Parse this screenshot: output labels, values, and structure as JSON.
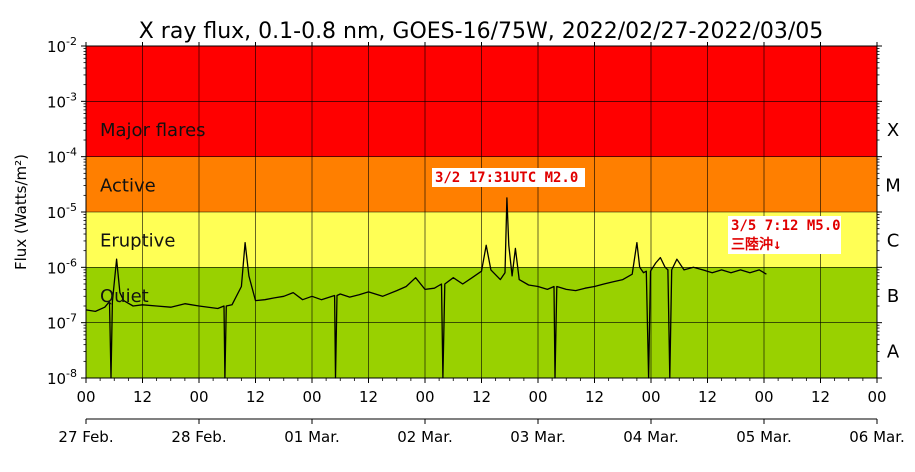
{
  "chart_data": {
    "type": "line",
    "title": "X ray flux, 0.1-0.8 nm, GOES-16/75W, 2022/02/27-2022/03/05",
    "ylabel": "Flux (Watts/m²)",
    "yscale": "log",
    "ylim": [
      1e-08,
      0.01
    ],
    "xlim": [
      0,
      168
    ],
    "x_unit": "hours since 2022-02-27 00:00 UTC",
    "y_ticks": [
      {
        "base": "10",
        "exp": "-8",
        "value": 1e-08
      },
      {
        "base": "10",
        "exp": "-7",
        "value": 1e-07
      },
      {
        "base": "10",
        "exp": "-6",
        "value": 1e-06
      },
      {
        "base": "10",
        "exp": "-5",
        "value": 1e-05
      },
      {
        "base": "10",
        "exp": "-4",
        "value": 0.0001
      },
      {
        "base": "10",
        "exp": "-3",
        "value": 0.001
      },
      {
        "base": "10",
        "exp": "-2",
        "value": 0.01
      }
    ],
    "x_hour_ticks": [
      {
        "x": 0,
        "label": "00"
      },
      {
        "x": 12,
        "label": "12"
      },
      {
        "x": 24,
        "label": "00"
      },
      {
        "x": 36,
        "label": "12"
      },
      {
        "x": 48,
        "label": "00"
      },
      {
        "x": 60,
        "label": "12"
      },
      {
        "x": 72,
        "label": "00"
      },
      {
        "x": 84,
        "label": "12"
      },
      {
        "x": 96,
        "label": "00"
      },
      {
        "x": 108,
        "label": "12"
      },
      {
        "x": 120,
        "label": "00"
      },
      {
        "x": 132,
        "label": "12"
      },
      {
        "x": 144,
        "label": "00"
      },
      {
        "x": 156,
        "label": "12"
      },
      {
        "x": 168,
        "label": "00"
      }
    ],
    "x_date_ticks": [
      {
        "x": 0,
        "label": "27 Feb."
      },
      {
        "x": 24,
        "label": "28 Feb."
      },
      {
        "x": 48,
        "label": "01 Mar."
      },
      {
        "x": 72,
        "label": "02 Mar."
      },
      {
        "x": 96,
        "label": "03 Mar."
      },
      {
        "x": 120,
        "label": "04 Mar."
      },
      {
        "x": 144,
        "label": "05 Mar."
      },
      {
        "x": 168,
        "label": "06 Mar."
      }
    ],
    "bands": [
      {
        "label": "Major flares",
        "from": 0.0001,
        "to": 0.01,
        "color": "#ff0000"
      },
      {
        "label": "Active",
        "from": 1e-05,
        "to": 0.0001,
        "color": "#ff7f00"
      },
      {
        "label": "Eruptive",
        "from": 1e-06,
        "to": 1e-05,
        "color": "#ffff55"
      },
      {
        "label": "Quiet",
        "from": 1e-08,
        "to": 1e-06,
        "color": "#99d100"
      }
    ],
    "classes": [
      {
        "label": "X",
        "at": 0.000316
      },
      {
        "label": "M",
        "at": 3.16e-05
      },
      {
        "label": "C",
        "at": 3.16e-06
      },
      {
        "label": "B",
        "at": 3.16e-07
      },
      {
        "label": "A",
        "at": 3.16e-08
      }
    ],
    "annotations": [
      {
        "text": "3/2 17:31UTC M2.0"
      },
      {
        "text": "3/5 7:12 M5.0"
      },
      {
        "text": "三陸沖↓"
      }
    ],
    "series": [
      {
        "color": "#000000",
        "points": [
          [
            0,
            1.7e-07
          ],
          [
            2,
            1.6e-07
          ],
          [
            4,
            1.9e-07
          ],
          [
            5,
            2.4e-07
          ],
          [
            5.3,
            1e-08
          ],
          [
            5.6,
            2.4e-07
          ],
          [
            6.5,
            1.4e-06
          ],
          [
            7.2,
            3.5e-07
          ],
          [
            8,
            2.5e-07
          ],
          [
            10,
            2e-07
          ],
          [
            12,
            2.1e-07
          ],
          [
            15,
            2e-07
          ],
          [
            18,
            1.9e-07
          ],
          [
            21,
            2.2e-07
          ],
          [
            24,
            2e-07
          ],
          [
            28,
            1.8e-07
          ],
          [
            29.3,
            2e-07
          ],
          [
            29.5,
            1e-08
          ],
          [
            29.8,
            2e-07
          ],
          [
            31,
            2.1e-07
          ],
          [
            33,
            4.5e-07
          ],
          [
            33.8,
            2.8e-06
          ],
          [
            34.6,
            7e-07
          ],
          [
            36,
            2.5e-07
          ],
          [
            38,
            2.6e-07
          ],
          [
            40,
            2.8e-07
          ],
          [
            42,
            3e-07
          ],
          [
            44,
            3.5e-07
          ],
          [
            46,
            2.6e-07
          ],
          [
            48,
            3e-07
          ],
          [
            50,
            2.6e-07
          ],
          [
            52.8,
            3.1e-07
          ],
          [
            53,
            1e-08
          ],
          [
            53.3,
            3.1e-07
          ],
          [
            54,
            3.3e-07
          ],
          [
            56,
            2.9e-07
          ],
          [
            58,
            3.2e-07
          ],
          [
            60,
            3.6e-07
          ],
          [
            63,
            3e-07
          ],
          [
            66,
            3.8e-07
          ],
          [
            68,
            4.5e-07
          ],
          [
            70,
            6.5e-07
          ],
          [
            72,
            4e-07
          ],
          [
            74,
            4.2e-07
          ],
          [
            75.5,
            5e-07
          ],
          [
            75.8,
            1e-08
          ],
          [
            76.2,
            5e-07
          ],
          [
            78,
            6.5e-07
          ],
          [
            80,
            5e-07
          ],
          [
            82,
            6.5e-07
          ],
          [
            84,
            8.5e-07
          ],
          [
            85,
            2.5e-06
          ],
          [
            86,
            9e-07
          ],
          [
            88,
            6e-07
          ],
          [
            89,
            8e-07
          ],
          [
            89.4,
            1.8e-05
          ],
          [
            89.8,
            2.5e-06
          ],
          [
            90.5,
            7e-07
          ],
          [
            91.2,
            2.2e-06
          ],
          [
            92,
            6e-07
          ],
          [
            94,
            4.8e-07
          ],
          [
            96,
            4.5e-07
          ],
          [
            98,
            4e-07
          ],
          [
            99.4,
            4.5e-07
          ],
          [
            99.6,
            1e-08
          ],
          [
            100,
            4.5e-07
          ],
          [
            102,
            4e-07
          ],
          [
            104,
            3.8e-07
          ],
          [
            106,
            4.2e-07
          ],
          [
            108,
            4.5e-07
          ],
          [
            110,
            5e-07
          ],
          [
            112,
            5.5e-07
          ],
          [
            114,
            6e-07
          ],
          [
            116,
            7.5e-07
          ],
          [
            117,
            2.8e-06
          ],
          [
            117.6,
            1e-06
          ],
          [
            118.4,
            8e-07
          ],
          [
            119,
            8.5e-07
          ],
          [
            119.5,
            1e-08
          ],
          [
            119.9,
            8.5e-07
          ],
          [
            121,
            1.2e-06
          ],
          [
            122,
            1.5e-06
          ],
          [
            123,
            1e-06
          ],
          [
            123.6,
            9e-07
          ],
          [
            124,
            1e-08
          ],
          [
            124.4,
            9e-07
          ],
          [
            125.5,
            1.4e-06
          ],
          [
            127,
            9e-07
          ],
          [
            129,
            1e-06
          ],
          [
            131,
            9e-07
          ],
          [
            133,
            8e-07
          ],
          [
            135,
            9e-07
          ],
          [
            137,
            8e-07
          ],
          [
            139,
            9e-07
          ],
          [
            141,
            8e-07
          ],
          [
            143,
            9e-07
          ],
          [
            144.5,
            7.5e-07
          ]
        ]
      }
    ]
  }
}
